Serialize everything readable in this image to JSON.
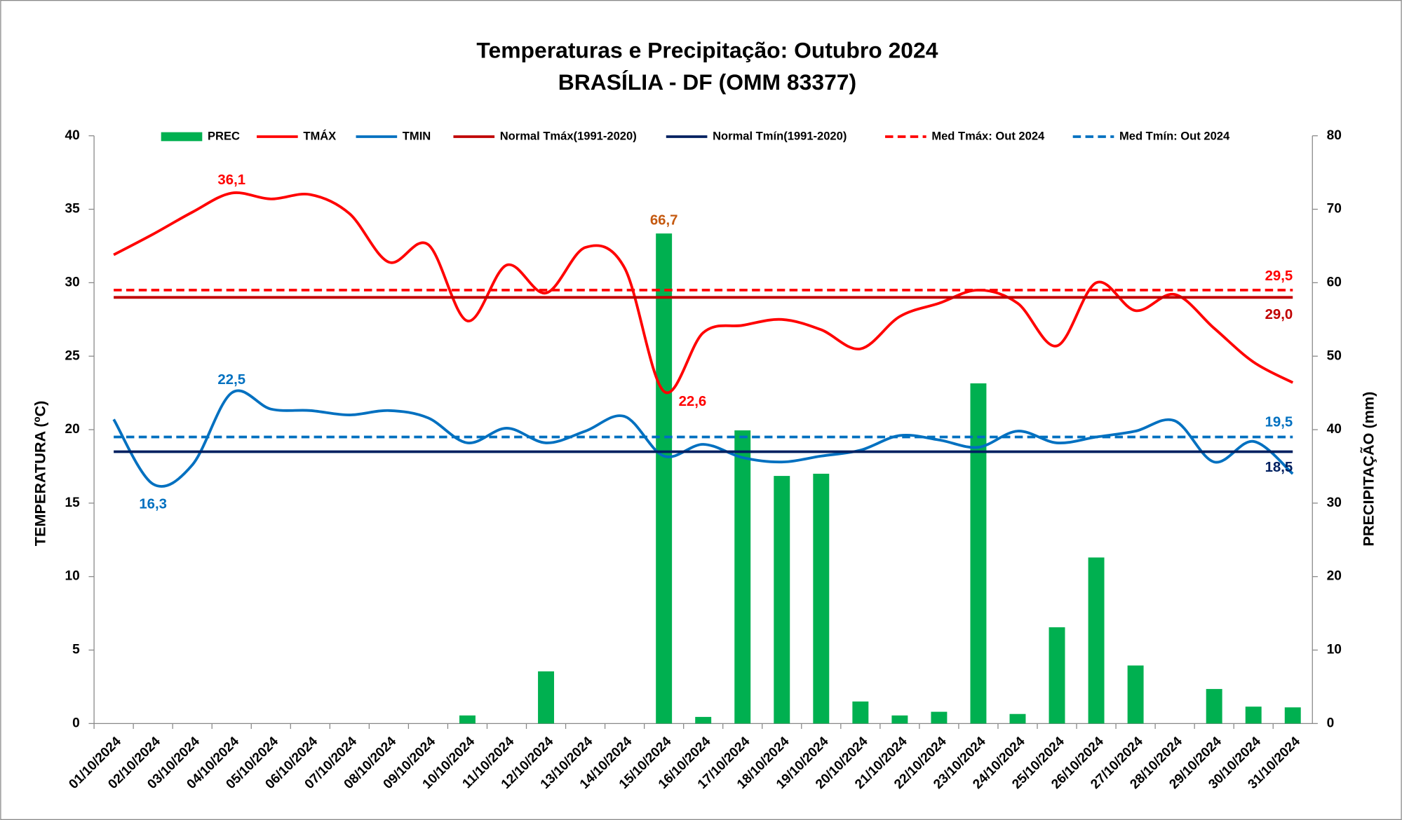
{
  "chart_data": {
    "type": "combo",
    "title": "Temperaturas e Precipitação: Outubro 2024",
    "subtitle": "BRASÍLIA - DF (OMM 83377)",
    "y_label": "TEMPERATURA (ºC)",
    "y2_label": "PRECIPITAÇÃO (mm)",
    "categories": [
      "01/10/2024",
      "02/10/2024",
      "03/10/2024",
      "04/10/2024",
      "05/10/2024",
      "06/10/2024",
      "07/10/2024",
      "08/10/2024",
      "09/10/2024",
      "10/10/2024",
      "11/10/2024",
      "12/10/2024",
      "13/10/2024",
      "14/10/2024",
      "15/10/2024",
      "16/10/2024",
      "17/10/2024",
      "18/10/2024",
      "19/10/2024",
      "20/10/2024",
      "21/10/2024",
      "22/10/2024",
      "23/10/2024",
      "24/10/2024",
      "25/10/2024",
      "26/10/2024",
      "27/10/2024",
      "28/10/2024",
      "29/10/2024",
      "30/10/2024",
      "31/10/2024"
    ],
    "ylim": [
      0,
      40
    ],
    "yticks": [
      0,
      5,
      10,
      15,
      20,
      25,
      30,
      35,
      40
    ],
    "y2lim": [
      0,
      80
    ],
    "y2ticks": [
      0,
      10,
      20,
      30,
      40,
      50,
      60,
      70,
      80
    ],
    "series": [
      {
        "name": "PREC",
        "kind": "bar",
        "axis": "y2",
        "color": "#00b050",
        "values": [
          0,
          0,
          0,
          0,
          0,
          0,
          0,
          0,
          0,
          1.1,
          0,
          7.1,
          0,
          0,
          66.7,
          0.9,
          39.9,
          33.7,
          34.0,
          3.0,
          1.1,
          1.6,
          46.3,
          1.3,
          13.1,
          22.6,
          7.9,
          0,
          4.7,
          2.3,
          2.2
        ],
        "value_labels": {
          "14": "66,7"
        },
        "label_color": "#c55a11"
      },
      {
        "name": "TMÁX",
        "kind": "line",
        "color": "#ff0000",
        "values": [
          31.9,
          33.3,
          34.8,
          36.1,
          35.7,
          36.0,
          34.7,
          31.4,
          32.6,
          27.4,
          31.2,
          29.3,
          32.4,
          31.0,
          22.6,
          26.6,
          27.1,
          27.5,
          26.8,
          25.5,
          27.7,
          28.6,
          29.5,
          28.6,
          25.7,
          30.0,
          28.1,
          29.2,
          26.9,
          24.6,
          23.2
        ],
        "value_labels": {
          "3": "36,1",
          "14": "22,6"
        },
        "label_color": "#ff0000"
      },
      {
        "name": "TMIN",
        "kind": "line",
        "color": "#0070c0",
        "values": [
          20.7,
          16.3,
          17.6,
          22.5,
          21.4,
          21.3,
          21.0,
          21.3,
          20.8,
          19.1,
          20.1,
          19.1,
          19.9,
          20.9,
          18.2,
          19.0,
          18.1,
          17.8,
          18.2,
          18.6,
          19.6,
          19.3,
          18.8,
          19.9,
          19.1,
          19.5,
          19.9,
          20.6,
          17.8,
          19.2,
          17.0
        ],
        "value_labels": {
          "1": "16,3",
          "3": "22,5"
        },
        "label_color": "#0070c0"
      },
      {
        "name": "Normal Tmáx(1991-2020)",
        "kind": "hline",
        "color": "#c00000",
        "dashed": false,
        "value": 29.0,
        "value_label": "29,0"
      },
      {
        "name": "Normal Tmín(1991-2020)",
        "kind": "hline",
        "color": "#002060",
        "dashed": false,
        "value": 18.5,
        "value_label": "18,5"
      },
      {
        "name": "Med Tmáx: Out 2024",
        "kind": "hline",
        "color": "#ff0000",
        "dashed": true,
        "value": 29.5,
        "value_label": "29,5"
      },
      {
        "name": "Med Tmín: Out 2024",
        "kind": "hline",
        "color": "#0070c0",
        "dashed": true,
        "value": 19.5,
        "value_label": "19,5"
      }
    ]
  }
}
